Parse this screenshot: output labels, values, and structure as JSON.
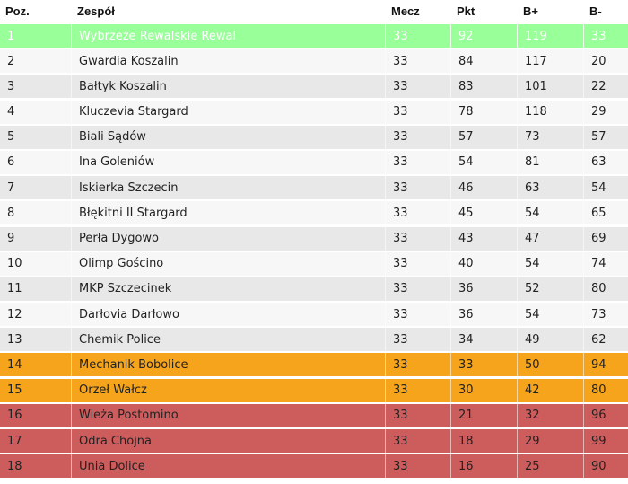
{
  "table": {
    "headers": {
      "pos": "Poz.",
      "team": "Zespół",
      "matches": "Mecz",
      "points": "Pkt",
      "goals_for": "B+",
      "goals_against": "B-"
    },
    "colors": {
      "champion": "#99ff99",
      "playoff": "#f5a41b",
      "relegation": "#cd5c5c",
      "row_alt_dark": "#e8e8e8",
      "row_alt_light": "#f7f7f7"
    },
    "rows": [
      {
        "pos": "1",
        "team": "Wybrzeże Rewalskie Rewal",
        "matches": "33",
        "points": "92",
        "goals_for": "119",
        "goals_against": "33",
        "zone": "champion"
      },
      {
        "pos": "2",
        "team": "Gwardia Koszalin",
        "matches": "33",
        "points": "84",
        "goals_for": "117",
        "goals_against": "20",
        "zone": "even"
      },
      {
        "pos": "3",
        "team": "Bałtyk Koszalin",
        "matches": "33",
        "points": "83",
        "goals_for": "101",
        "goals_against": "22",
        "zone": "odd"
      },
      {
        "pos": "4",
        "team": "Kluczevia Stargard",
        "matches": "33",
        "points": "78",
        "goals_for": "118",
        "goals_against": "29",
        "zone": "even"
      },
      {
        "pos": "5",
        "team": "Biali Sądów",
        "matches": "33",
        "points": "57",
        "goals_for": "73",
        "goals_against": "57",
        "zone": "odd"
      },
      {
        "pos": "6",
        "team": "Ina Goleniów",
        "matches": "33",
        "points": "54",
        "goals_for": "81",
        "goals_against": "63",
        "zone": "even"
      },
      {
        "pos": "7",
        "team": "Iskierka Szczecin",
        "matches": "33",
        "points": "46",
        "goals_for": "63",
        "goals_against": "54",
        "zone": "odd"
      },
      {
        "pos": "8",
        "team": "Błękitni II Stargard",
        "matches": "33",
        "points": "45",
        "goals_for": "54",
        "goals_against": "65",
        "zone": "even"
      },
      {
        "pos": "9",
        "team": "Perła Dygowo",
        "matches": "33",
        "points": "43",
        "goals_for": "47",
        "goals_against": "69",
        "zone": "odd"
      },
      {
        "pos": "10",
        "team": "Olimp Gościno",
        "matches": "33",
        "points": "40",
        "goals_for": "54",
        "goals_against": "74",
        "zone": "even"
      },
      {
        "pos": "11",
        "team": "MKP Szczecinek",
        "matches": "33",
        "points": "36",
        "goals_for": "52",
        "goals_against": "80",
        "zone": "odd"
      },
      {
        "pos": "12",
        "team": "Darłovia Darłowo",
        "matches": "33",
        "points": "36",
        "goals_for": "54",
        "goals_against": "73",
        "zone": "even"
      },
      {
        "pos": "13",
        "team": "Chemik Police",
        "matches": "33",
        "points": "34",
        "goals_for": "49",
        "goals_against": "62",
        "zone": "odd"
      },
      {
        "pos": "14",
        "team": "Mechanik Bobolice",
        "matches": "33",
        "points": "33",
        "goals_for": "50",
        "goals_against": "94",
        "zone": "playoff"
      },
      {
        "pos": "15",
        "team": "Orzeł Wałcz",
        "matches": "33",
        "points": "30",
        "goals_for": "42",
        "goals_against": "80",
        "zone": "playoff"
      },
      {
        "pos": "16",
        "team": "Wieża Postomino",
        "matches": "33",
        "points": "21",
        "goals_for": "32",
        "goals_against": "96",
        "zone": "relegate"
      },
      {
        "pos": "17",
        "team": "Odra Chojna",
        "matches": "33",
        "points": "18",
        "goals_for": "29",
        "goals_against": "99",
        "zone": "relegate"
      },
      {
        "pos": "18",
        "team": "Unia Dolice",
        "matches": "33",
        "points": "16",
        "goals_for": "25",
        "goals_against": "90",
        "zone": "relegate"
      }
    ]
  }
}
